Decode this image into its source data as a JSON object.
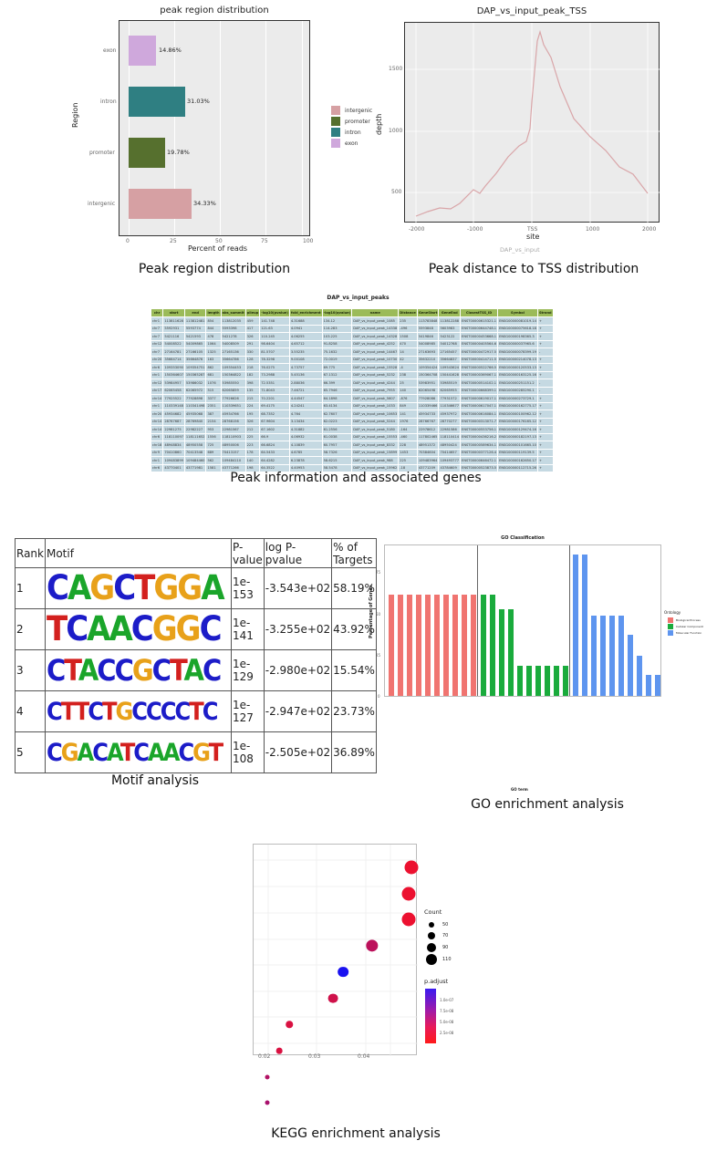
{
  "chart_data": [
    {
      "type": "bar",
      "orientation": "horizontal",
      "title": "peak region distribution",
      "xlabel": "Percent of reads",
      "ylabel": "Region",
      "categories": [
        "intergenic",
        "promoter",
        "intron",
        "exon"
      ],
      "values": [
        34.33,
        19.78,
        31.03,
        14.86
      ],
      "value_labels": [
        "34.33%",
        "19.78%",
        "31.03%",
        "14.86%"
      ],
      "colors": [
        "#d6a0a3",
        "#56702e",
        "#2f7f82",
        "#cfa8dc"
      ],
      "xlim": [
        0,
        100
      ],
      "xticks": [
        "0",
        "25",
        "50",
        "75",
        "100"
      ],
      "legend": [
        "intergenic",
        "promoter",
        "intron",
        "exon"
      ],
      "legend_position": "right",
      "grid": true
    },
    {
      "type": "line",
      "title": "DAP_vs_input_peak_TSS",
      "xlabel": "site",
      "ylabel": "depth",
      "subtitle_below": "DAP_vs_input",
      "xticks": [
        "-2000",
        "-1000",
        "TSS",
        "1000",
        "2000"
      ],
      "yticks": [
        "500",
        "1000",
        "1500"
      ],
      "x": [
        -2000,
        -1800,
        -1600,
        -1400,
        -1200,
        -1000,
        -900,
        -800,
        -600,
        -400,
        -200,
        -50,
        0,
        100,
        150,
        250,
        400,
        600,
        800,
        1000,
        1200,
        1400,
        1600,
        1800,
        2000
      ],
      "y": [
        320,
        360,
        360,
        410,
        410,
        510,
        480,
        540,
        640,
        770,
        860,
        900,
        1500,
        1810,
        1690,
        1580,
        1300,
        1050,
        950,
        880,
        770,
        640,
        600,
        530,
        470
      ],
      "color": "#d9a5a8",
      "grid": true
    },
    {
      "type": "bar",
      "title": "GO Classification",
      "xlabel": "GO term",
      "ylabel": "Percentage of Genes",
      "yticks": [
        "0",
        "25",
        "50",
        "75"
      ],
      "legend_title": "Ontology",
      "legend": [
        "Biological Process",
        "Cellular Component",
        "Molecular Function"
      ],
      "series": [
        {
          "name": "Biological Process",
          "color": "#f07470",
          "values": [
            63,
            63,
            63,
            63,
            63,
            63,
            63,
            63,
            63,
            63
          ]
        },
        {
          "name": "Cellular Component",
          "color": "#1aab3c",
          "values": [
            63,
            63,
            54,
            54,
            19,
            19,
            19,
            19,
            19,
            19
          ]
        },
        {
          "name": "Molecular Function",
          "color": "#5e95ef",
          "values": [
            88,
            88,
            50,
            50,
            50,
            50,
            38,
            25,
            13,
            13
          ]
        }
      ]
    },
    {
      "type": "scatter",
      "title": "",
      "xlabel": "",
      "xticks": [
        "0.02",
        "0.03",
        "0.04"
      ],
      "points": [
        {
          "x": 0.048,
          "rank": 1,
          "count": 110,
          "p_adjust": 1e-08
        },
        {
          "x": 0.0475,
          "rank": 2,
          "count": 110,
          "p_adjust": 1e-08
        },
        {
          "x": 0.0475,
          "rank": 3,
          "count": 110,
          "p_adjust": 1e-08
        },
        {
          "x": 0.04,
          "rank": 4,
          "count": 100,
          "p_adjust": 3.5e-08
        },
        {
          "x": 0.034,
          "rank": 5,
          "count": 90,
          "p_adjust": 1.2e-07
        },
        {
          "x": 0.032,
          "rank": 6,
          "count": 85,
          "p_adjust": 2.5e-08
        },
        {
          "x": 0.023,
          "rank": 7,
          "count": 65,
          "p_adjust": 2e-08
        },
        {
          "x": 0.021,
          "rank": 8,
          "count": 60,
          "p_adjust": 2e-08
        },
        {
          "x": 0.0185,
          "rank": 9,
          "count": 50,
          "p_adjust": 4e-08
        },
        {
          "x": 0.0185,
          "rank": 10,
          "count": 50,
          "p_adjust": 4.5e-08
        }
      ],
      "size_legend_title": "Count",
      "size_legend": [
        "50",
        "70",
        "90",
        "110"
      ],
      "color_legend_title": "p.adjust",
      "color_legend": [
        "1.0e-07",
        "7.5e-08",
        "5.0e-08",
        "2.5e-08"
      ]
    }
  ],
  "captions": {
    "region": "Peak region distribution",
    "tss": "Peak distance to TSS distribution",
    "peaks": "Peak information and associated genes",
    "motif": "Motif analysis",
    "go": "GO enrichment analysis",
    "kegg": "KEGG enrichment analysis"
  },
  "region_chart": {
    "title": "peak region distribution",
    "xlabel": "Percent of reads",
    "ylabel": "Region",
    "xticks": [
      "0",
      "25",
      "50",
      "75",
      "100"
    ],
    "bars": [
      {
        "name": "exon",
        "value": 14.86,
        "label": "14.86%",
        "color": "#cfa8dc"
      },
      {
        "name": "intron",
        "value": 31.03,
        "label": "31.03%",
        "color": "#2f7f82"
      },
      {
        "name": "promoter",
        "value": 19.78,
        "label": "19.78%",
        "color": "#56702e"
      },
      {
        "name": "intergenic",
        "value": 34.33,
        "label": "34.33%",
        "color": "#d6a0a3"
      }
    ],
    "legend": [
      {
        "name": "intergenic",
        "color": "#d6a0a3"
      },
      {
        "name": "promoter",
        "color": "#56702e"
      },
      {
        "name": "intron",
        "color": "#2f7f82"
      },
      {
        "name": "exon",
        "color": "#cfa8dc"
      }
    ]
  },
  "tss_chart": {
    "title": "DAP_vs_input_peak_TSS",
    "xlabel": "site",
    "ylabel": "depth",
    "sublabel": "DAP_vs_input",
    "xticks": [
      "-2000",
      "-1000",
      "TSS",
      "1000",
      "2000"
    ],
    "yticks": [
      "1500",
      "1000",
      "500"
    ]
  },
  "peaks_table": {
    "title": "DAP_vs_input_peaks",
    "columns": [
      "chr",
      "start",
      "end",
      "length",
      "abs_summit",
      "pileup",
      "-log10(pvalue)",
      "fold_enrichment",
      "-log10(qvalue)",
      "name",
      "Distance",
      "GeneStart",
      "GeneEnd",
      "ClosestTSS_ID",
      "Symbol",
      "Strand"
    ],
    "rows": [
      [
        "chr1",
        "113811628",
        "113812481",
        "854",
        "113812035",
        "459",
        "141.748",
        "4.31688",
        "134.12",
        "DAP_vs_input_peak_1085",
        "235",
        "113783848",
        "113812288",
        "ENST00000615321.1",
        "ENSG00000081019.14",
        "+"
      ],
      [
        "chr7",
        "5592931",
        "5593774",
        "844",
        "5593398",
        "417",
        "121.63",
        "4.0941",
        "114.283",
        "DAP_vs_input_peak_14338",
        "-496",
        "5593848",
        "5603983",
        "ENST00000644748.1",
        "ENSG00000075618.18",
        "+"
      ],
      [
        "chr7",
        "5421116",
        "5421593",
        "478",
        "5421278",
        "326",
        "110.245",
        "4.06255",
        "103.225",
        "DAP_vs_input_peak_14328",
        "1508",
        "5419846",
        "5423122",
        "ENST00000453668.1",
        "ENSG00000198365.3",
        "+"
      ],
      [
        "chr12",
        "54008522",
        "54009865",
        "1064",
        "54008509",
        "291",
        "98.6404",
        "4.65712",
        "91.8258",
        "DAP_vs_input_peak_4252",
        "470",
        "54008985",
        "54012768",
        "ENST00000405564.6",
        "ENSG00000037965.6",
        "+"
      ],
      [
        "chr7",
        "27164781",
        "27166105",
        "1325",
        "27165136",
        "330",
        "81.5707",
        "3.55235",
        "75.1632",
        "DAP_vs_input_peak_14467",
        "14",
        "27163693",
        "27165457",
        "ENST00000472917.5",
        "ENSG00000078399.19",
        "-"
      ],
      [
        "chr20",
        "35664714",
        "35664876",
        "163",
        "35664786",
        "128",
        "78.3298",
        "9.00108",
        "72.0019",
        "DAP_vs_input_peak_10730",
        "42",
        "35632210",
        "35664837",
        "ENST00000414711.5",
        "ENSG00000214078.13",
        "+"
      ],
      [
        "chr6",
        "109353090",
        "109354751",
        "862",
        "109354453",
        "218",
        "76.0275",
        "4.73757",
        "69.775",
        "DAP_vs_input_peak_15528",
        "-4",
        "109354424",
        "109543624",
        "ENST00000522766.5",
        "ENSG00000120533.13",
        "+"
      ],
      [
        "chr1",
        "150364607",
        "150365287",
        "681",
        "150364822",
        "182",
        "73.2988",
        "5.45136",
        "67.1312",
        "DAP_vs_input_peak_5232",
        "238",
        "150364708",
        "150441628",
        "ENST00000369067.1",
        "ENSG00000163125.16",
        "+"
      ],
      [
        "chr12",
        "53984957",
        "53986032",
        "1076",
        "53985550",
        "398",
        "72.5351",
        "2.88036",
        "66.399",
        "DAP_vs_input_peak_4244",
        "25",
        "53983951",
        "53985519",
        "ENST00000514102.1",
        "ENSG00000251151.2",
        "-"
      ],
      [
        "chr17",
        "62065458",
        "62065972",
        "515",
        "62065859",
        "135",
        "71.8043",
        "7.46721",
        "65.7946",
        "DAP_vs_input_peak_7955",
        "140",
        "62065498",
        "62065955",
        "ENST00000668399.1",
        "ENSG00000285290.1",
        "-"
      ],
      [
        "chr14",
        "77925522",
        "77928898",
        "3377",
        "77926626",
        "215",
        "70.2201",
        "4.44547",
        "64.1898",
        "DAP_vs_input_peak_5607",
        "-876",
        "77928086",
        "77931572",
        "ENST00000619017.1",
        "ENSG00000273729.1",
        "+"
      ],
      [
        "chr1",
        "110339148",
        "110341498",
        "2351",
        "110339651",
        "224",
        "69.4175",
        "4.24241",
        "63.4134",
        "DAP_vs_input_peak_1033",
        "849",
        "110339466",
        "110346677",
        "ENST00000617047.1",
        "ENSG00000162775.17",
        "+"
      ],
      [
        "chr20",
        "45934682",
        "45935068",
        "387",
        "45934766",
        "195",
        "68.7352",
        "4.764",
        "62.7607",
        "DAP_vs_input_peak_10653",
        "141",
        "45934733",
        "45937972",
        "ENST00000616084.1",
        "ENSG00000100962.12",
        "+"
      ],
      [
        "chr14",
        "28767687",
        "28769840",
        "2154",
        "28768156",
        "326",
        "67.9604",
        "3.13434",
        "62.0223",
        "DAP_vs_input_peak_5244",
        "1976",
        "28766767",
        "28770277",
        "ENST00000313071.7",
        "ENSG00000176165.12",
        "+"
      ],
      [
        "chr14",
        "22981275",
        "22982227",
        "953",
        "22981567",
        "212",
        "67.1602",
        "4.31882",
        "61.2556",
        "DAP_vs_input_peak_5180",
        "-164",
        "22978612",
        "22981586",
        "ENST00000553756.1",
        "ENSG00000129474.16",
        "+"
      ],
      [
        "chr6",
        "118110097",
        "118111652",
        "1556",
        "118110903",
        "225",
        "66.9",
        "4.06932",
        "61.0038",
        "DAP_vs_input_peak_15553",
        "-460",
        "117802465",
        "118110414",
        "ENST00000436216.2",
        "ENSG00000182197.13",
        "+"
      ],
      [
        "chr18",
        "48948834",
        "48950558",
        "725",
        "48950006",
        "223",
        "66.6824",
        "4.10839",
        "60.7957",
        "DAP_vs_input_peak_8332",
        "228",
        "48951372",
        "48950424",
        "ENST00000589634.1",
        "ENSG00000101665.10",
        "+"
      ],
      [
        "chr9",
        "70410860",
        "70413548",
        "689",
        "70413157",
        "178",
        "64.5433",
        "4.6785",
        "58.7326",
        "DAP_vs_input_peak_15899",
        "1453",
        "70384604",
        "70414657",
        "ENST00000377126.4",
        "ENSG00000119139.5",
        "+"
      ],
      [
        "chr1",
        "109483899",
        "109484460",
        "562",
        "109484110",
        "140",
        "64.4282",
        "6.23878",
        "58.6215",
        "DAP_vs_input_peak_988",
        "225",
        "109483964",
        "109493777",
        "ENST00000646472.1",
        "ENSG00000162650.17",
        "+"
      ],
      [
        "chr6",
        "43770401",
        "43771981",
        "1581",
        "43771266",
        "198",
        "64.3522",
        "4.40953",
        "58.5478",
        "DAP_vs_input_peak_15962",
        "-18",
        "43771209",
        "43784609",
        "ENST00000523873.5",
        "ENSG00000112715.26",
        "+"
      ]
    ]
  },
  "motif_table": {
    "headers": [
      "Rank",
      "Motif",
      "P-value",
      "log P-pvalue",
      "% of Targets"
    ],
    "rows": [
      {
        "rank": "1",
        "logo": "CAGCTGGA",
        "pvalue": "1e-153",
        "logp": "-3.543e+02",
        "targets": "58.19%"
      },
      {
        "rank": "2",
        "logo": "TCAACGGC",
        "pvalue": "1e-141",
        "logp": "-3.255e+02",
        "targets": "43.92%"
      },
      {
        "rank": "3",
        "logo": "CTACCGCTAC",
        "pvalue": "1e-129",
        "logp": "-2.980e+02",
        "targets": "15.54%"
      },
      {
        "rank": "4",
        "logo": "CTTCTGCCCCTC",
        "pvalue": "1e-127",
        "logp": "-2.947e+02",
        "targets": "23.73%"
      },
      {
        "rank": "5",
        "logo": "CGACATCAACGT",
        "pvalue": "1e-108",
        "logp": "-2.505e+02",
        "targets": "36.89%"
      }
    ]
  },
  "go_chart": {
    "title": "GO Classification",
    "xlabel": "GO term",
    "ylabel": "Percentage of Genes",
    "legend_title": "Ontology",
    "legend": [
      {
        "name": "Biological Process",
        "color": "#f07470"
      },
      {
        "name": "Cellular Component",
        "color": "#1aab3c"
      },
      {
        "name": "Molecular Function",
        "color": "#5e95ef"
      }
    ],
    "yticks": [
      "75",
      "50",
      "25",
      "0"
    ]
  },
  "kegg_chart": {
    "xticks": [
      "0.02",
      "0.03",
      "0.04"
    ],
    "count_title": "Count",
    "count_values": [
      "50",
      "70",
      "90",
      "110"
    ],
    "padj_title": "p.adjust",
    "padj_values": [
      "1.0e-07",
      "7.5e-08",
      "5.0e-08",
      "2.5e-08"
    ]
  }
}
